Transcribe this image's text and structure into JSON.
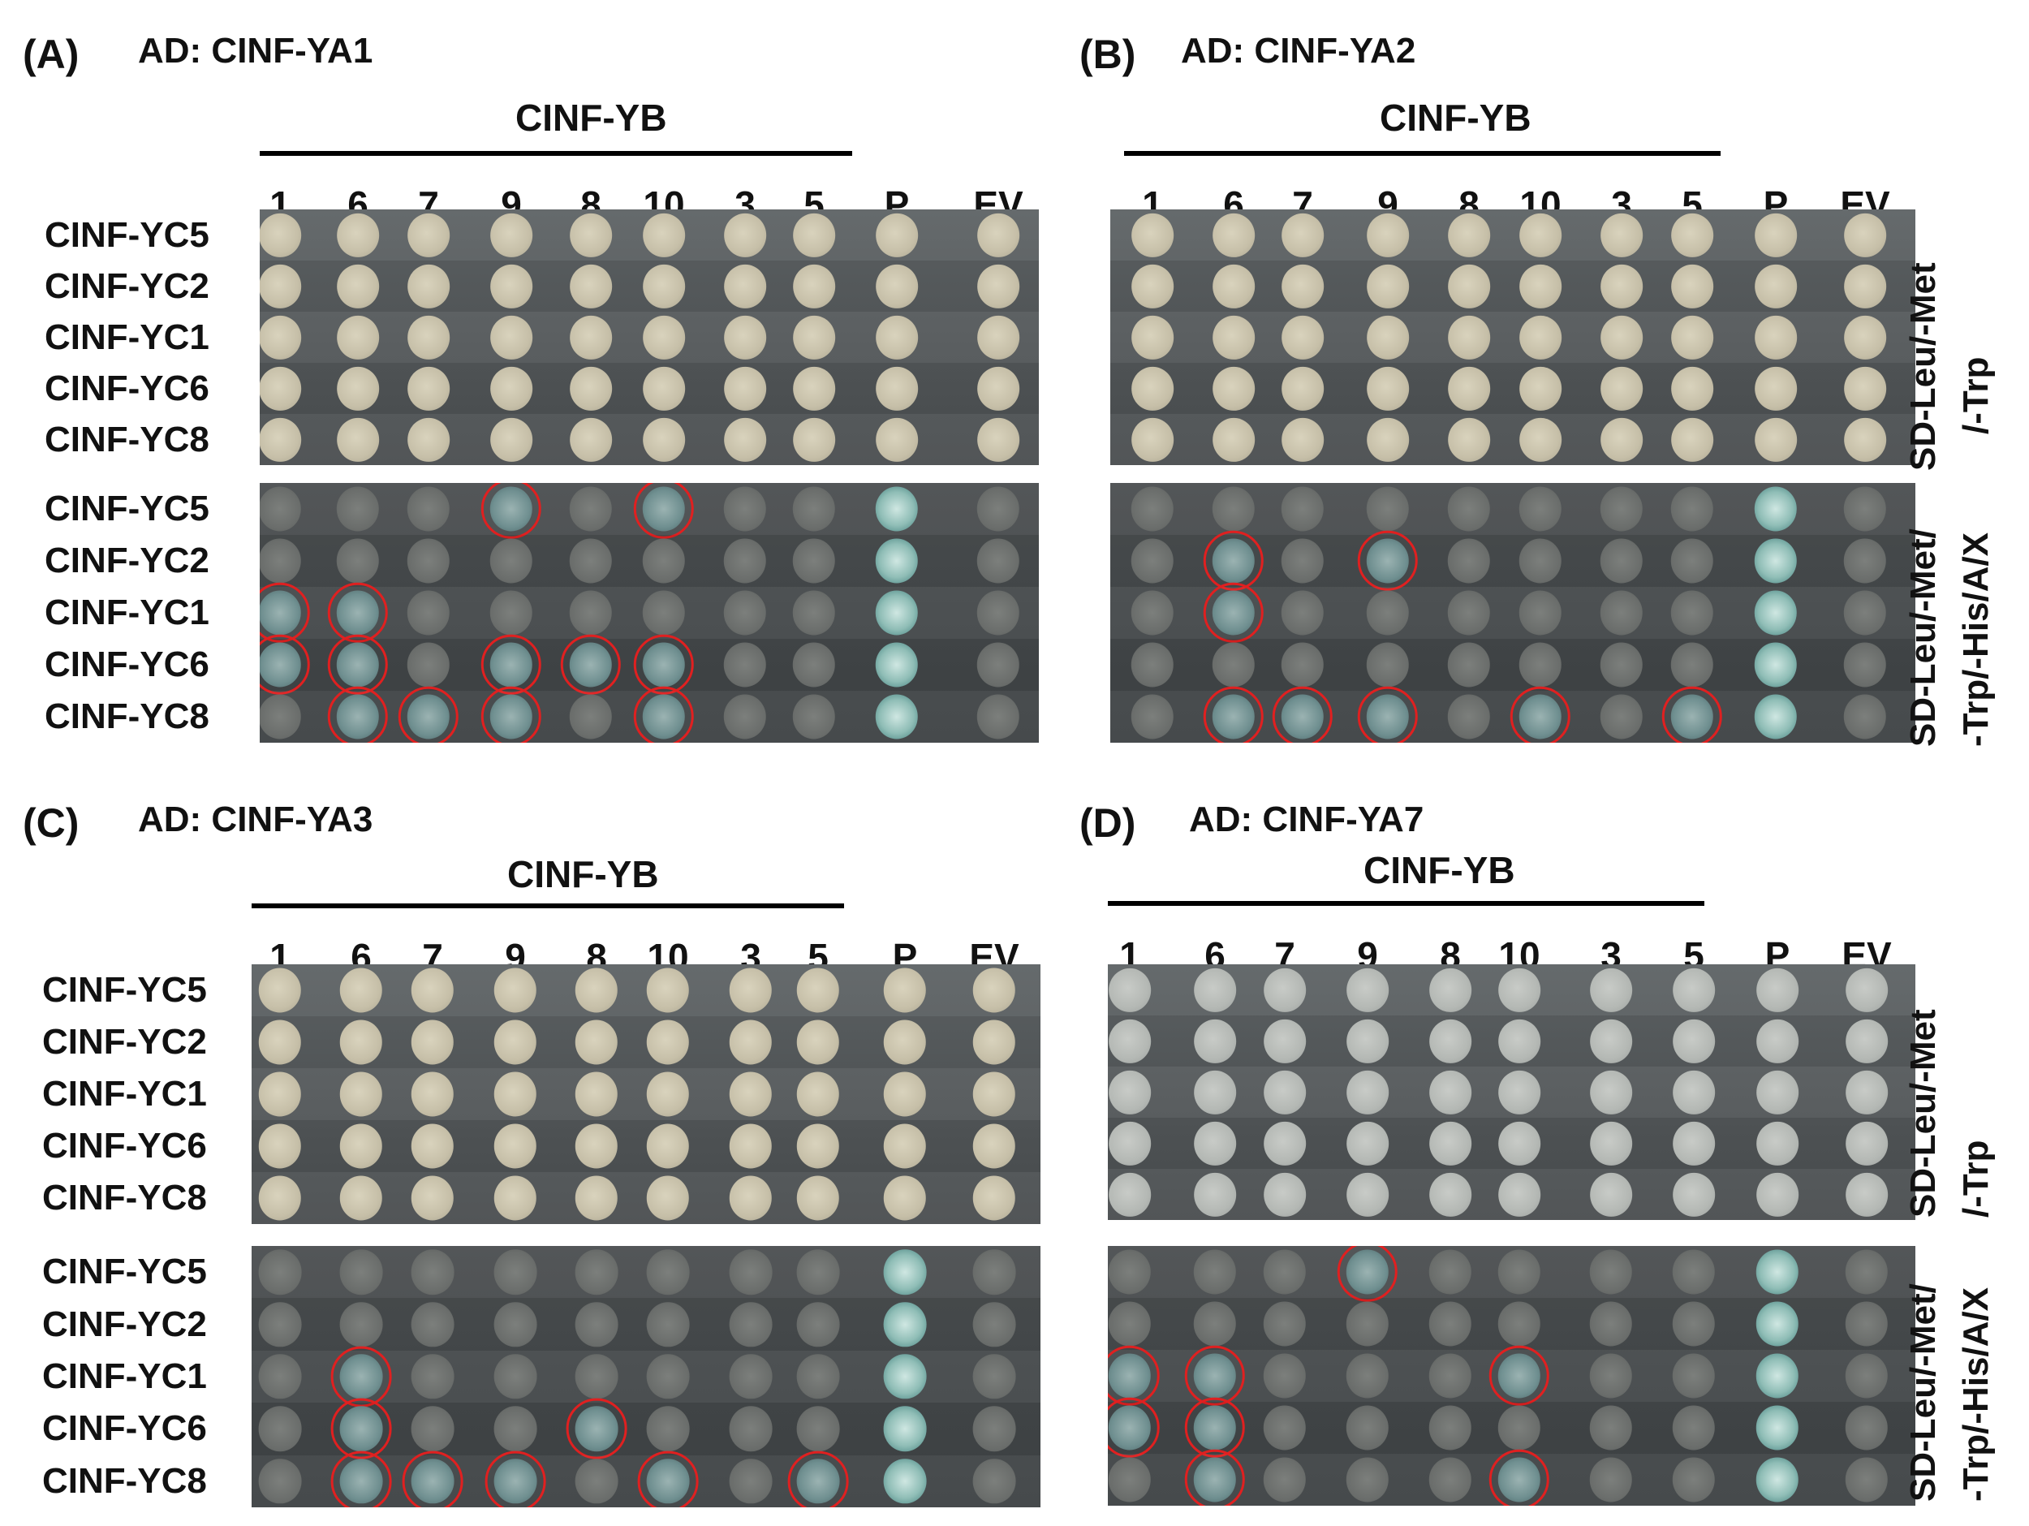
{
  "figure": {
    "colors": {
      "circle": "#e02020"
    },
    "yb_header": "CINF-YB",
    "columns": [
      "1",
      "6",
      "7",
      "9",
      "8",
      "10",
      "3",
      "5",
      "P",
      "EV"
    ],
    "rows": [
      "CINF-YC5",
      "CINF-YC2",
      "CINF-YC1",
      "CINF-YC6",
      "CINF-YC8"
    ],
    "media": {
      "selective": "SD-Leu/-Met\n/-Trp",
      "xgal": "SD-Leu/-Met/\n-Trp/-His/A/X"
    },
    "panels": [
      {
        "id": "A",
        "letter": "(A)",
        "ad": "AD: CINF-YA1",
        "selective_tone": "cream",
        "positives": [
          [
            0,
            3
          ],
          [
            0,
            5
          ],
          [
            2,
            0
          ],
          [
            2,
            1
          ],
          [
            3,
            0
          ],
          [
            3,
            1
          ],
          [
            3,
            3
          ],
          [
            3,
            4
          ],
          [
            3,
            5
          ],
          [
            4,
            1
          ],
          [
            4,
            2
          ],
          [
            4,
            3
          ],
          [
            4,
            5
          ]
        ]
      },
      {
        "id": "B",
        "letter": "(B)",
        "ad": "AD: CINF-YA2",
        "selective_tone": "cream",
        "positives": [
          [
            1,
            1
          ],
          [
            1,
            3
          ],
          [
            2,
            1
          ],
          [
            4,
            1
          ],
          [
            4,
            2
          ],
          [
            4,
            3
          ],
          [
            4,
            5
          ],
          [
            4,
            7
          ]
        ]
      },
      {
        "id": "C",
        "letter": "(C)",
        "ad": "AD: CINF-YA3",
        "selective_tone": "cream",
        "positives": [
          [
            2,
            1
          ],
          [
            3,
            1
          ],
          [
            3,
            4
          ],
          [
            4,
            1
          ],
          [
            4,
            2
          ],
          [
            4,
            3
          ],
          [
            4,
            5
          ],
          [
            4,
            7
          ]
        ]
      },
      {
        "id": "D",
        "letter": "(D)",
        "ad": "AD: CINF-YA7",
        "selective_tone": "grey",
        "positives": [
          [
            0,
            3
          ],
          [
            2,
            0
          ],
          [
            2,
            1
          ],
          [
            2,
            5
          ],
          [
            3,
            0
          ],
          [
            3,
            1
          ],
          [
            4,
            1
          ],
          [
            4,
            5
          ]
        ]
      }
    ]
  }
}
